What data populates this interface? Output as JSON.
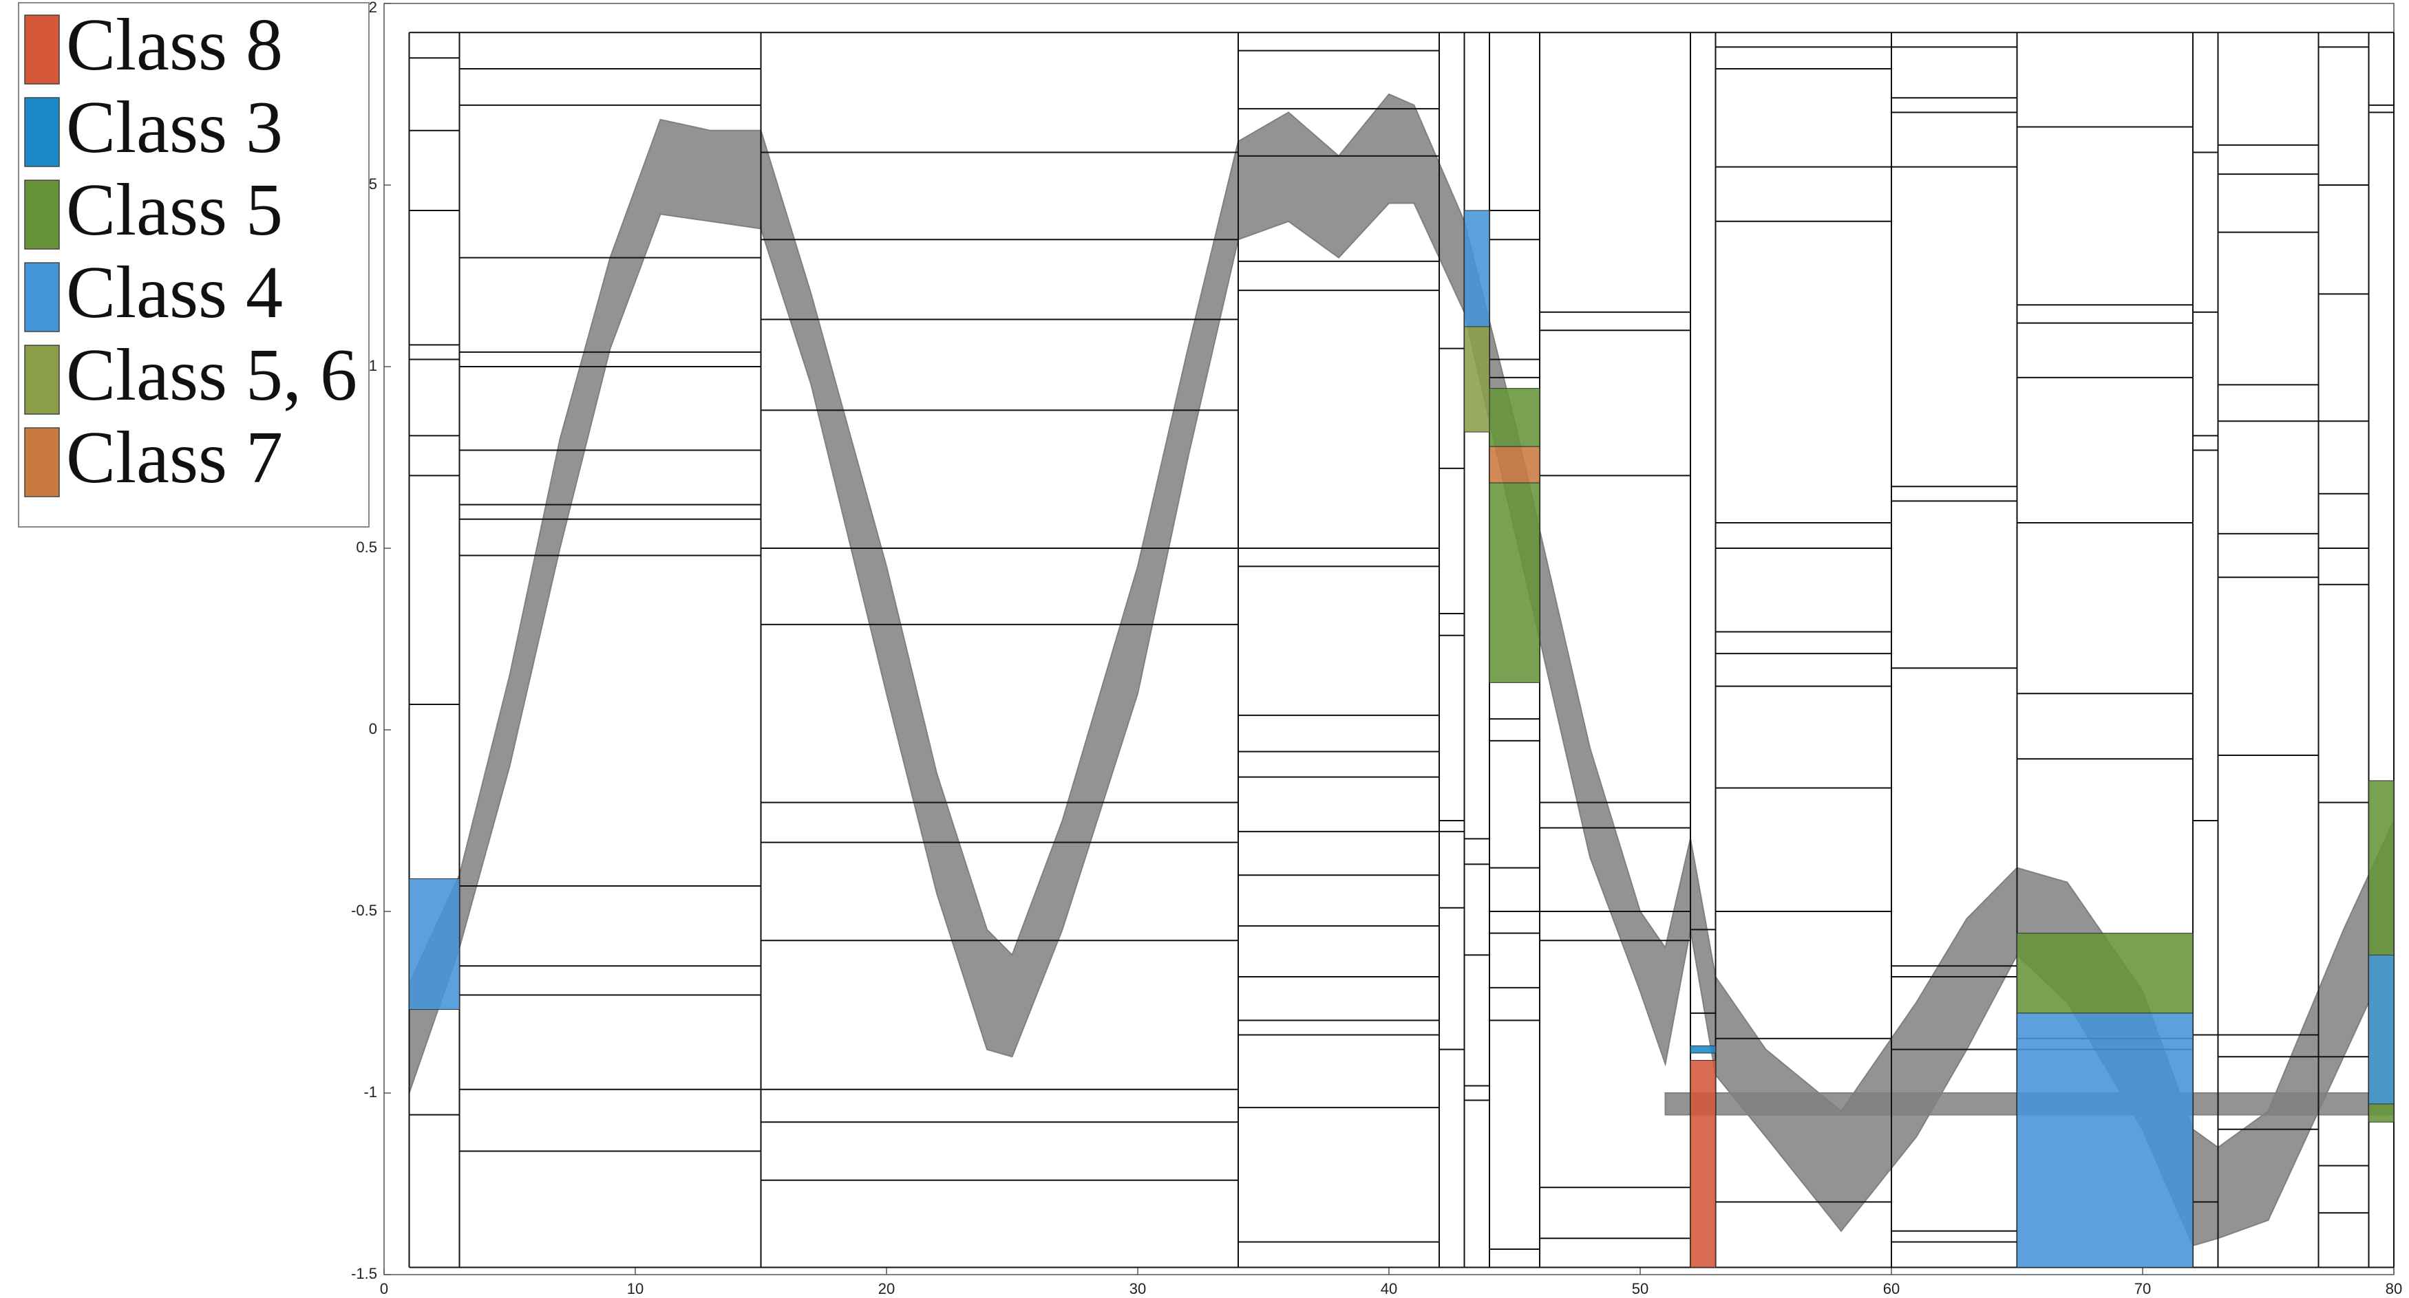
{
  "chart_data": {
    "type": "interval-overlay",
    "xlim": [
      0,
      80
    ],
    "ylim": [
      -1.5,
      2
    ],
    "xticks": [
      0,
      10,
      20,
      30,
      40,
      50,
      60,
      70,
      80
    ],
    "yticks": [
      -1.5,
      -1,
      -0.5,
      0,
      0.5,
      1,
      1.5,
      2
    ],
    "band_color": "#808080",
    "bands": [
      {
        "x": [
          1,
          3,
          5,
          7,
          9,
          11,
          13,
          15,
          17,
          20,
          22,
          24,
          25,
          27,
          30,
          32,
          34,
          36,
          38,
          40,
          41,
          43,
          45,
          48,
          50,
          51,
          52,
          53,
          55,
          58,
          61,
          63,
          65,
          67,
          70,
          72,
          73,
          75,
          78,
          80
        ],
        "lower": [
          -1.0,
          -0.6,
          -0.1,
          0.5,
          1.05,
          1.42,
          1.4,
          1.38,
          0.95,
          0.1,
          -0.45,
          -0.88,
          -0.9,
          -0.55,
          0.1,
          0.75,
          1.35,
          1.4,
          1.3,
          1.45,
          1.45,
          1.15,
          0.55,
          -0.35,
          -0.72,
          -0.92,
          -0.55,
          -0.95,
          -1.12,
          -1.38,
          -1.12,
          -0.88,
          -0.62,
          -0.75,
          -1.1,
          -1.42,
          -1.4,
          -1.35,
          -0.9,
          -0.6
        ],
        "upper": [
          -0.7,
          -0.4,
          0.15,
          0.8,
          1.3,
          1.68,
          1.65,
          1.65,
          1.2,
          0.45,
          -0.12,
          -0.55,
          -0.62,
          -0.25,
          0.45,
          1.05,
          1.62,
          1.7,
          1.58,
          1.75,
          1.72,
          1.4,
          0.85,
          -0.05,
          -0.5,
          -0.6,
          -0.3,
          -0.68,
          -0.88,
          -1.05,
          -0.75,
          -0.52,
          -0.38,
          -0.42,
          -0.72,
          -1.1,
          -1.15,
          -1.05,
          -0.55,
          -0.25
        ]
      },
      {
        "x": [
          51,
          80
        ],
        "lower": [
          -1.06,
          -1.06
        ],
        "upper": [
          -1.0,
          -1.0
        ]
      }
    ],
    "segments": [
      {
        "x0": 1,
        "x1": 3,
        "levels": [
          1.85,
          1.65,
          1.43,
          1.06,
          1.02,
          0.81,
          0.7,
          0.07,
          -1.06
        ]
      },
      {
        "x0": 3,
        "x1": 15,
        "levels": [
          1.82,
          1.72,
          1.3,
          1.04,
          1.0,
          0.77,
          0.62,
          0.58,
          0.48,
          -0.43,
          -0.65,
          -0.73,
          -0.99,
          -1.16
        ]
      },
      {
        "x0": 15,
        "x1": 34,
        "levels": [
          1.59,
          1.35,
          1.13,
          0.88,
          0.5,
          0.29,
          -0.2,
          -0.31,
          -0.58,
          -0.99,
          -1.08,
          -1.24
        ]
      },
      {
        "x0": 34,
        "x1": 42,
        "levels": [
          1.87,
          1.71,
          1.58,
          1.29,
          1.21,
          0.5,
          0.45,
          0.04,
          -0.06,
          -0.13,
          -0.28,
          -0.4,
          -0.54,
          -0.68,
          -0.8,
          -0.84,
          -1.04,
          -1.41
        ]
      },
      {
        "x0": 42,
        "x1": 43,
        "levels": [
          1.05,
          0.72,
          0.32,
          0.26,
          -0.25,
          -0.28,
          -0.49,
          -0.88
        ]
      },
      {
        "x0": 43,
        "x1": 44,
        "levels": [
          -0.3,
          -0.37,
          -0.62,
          -0.98,
          -1.02
        ]
      },
      {
        "x0": 44,
        "x1": 46,
        "levels": [
          1.43,
          1.35,
          1.02,
          0.97,
          0.03,
          -0.03,
          -0.38,
          -0.5,
          -0.56,
          -0.71,
          -0.8,
          -1.43
        ]
      },
      {
        "x0": 46,
        "x1": 52,
        "levels": [
          1.15,
          1.1,
          0.7,
          -0.2,
          -0.27,
          -0.5,
          -0.58,
          -1.26,
          -1.4
        ]
      },
      {
        "x0": 52,
        "x1": 53,
        "levels": [
          -0.55,
          -0.78
        ]
      },
      {
        "x0": 53,
        "x1": 60,
        "levels": [
          1.88,
          1.82,
          1.55,
          1.4,
          0.57,
          0.5,
          0.27,
          0.21,
          0.12,
          -0.16,
          -0.5,
          -0.85,
          -1.3
        ]
      },
      {
        "x0": 60,
        "x1": 65,
        "levels": [
          1.88,
          1.74,
          1.7,
          1.55,
          0.67,
          0.63,
          0.17,
          -0.65,
          -0.68,
          -0.88,
          -1.38,
          -1.41
        ]
      },
      {
        "x0": 65,
        "x1": 72,
        "levels": [
          1.66,
          1.17,
          1.12,
          0.97,
          0.57,
          0.1,
          -0.08,
          -0.85,
          -0.88
        ]
      },
      {
        "x0": 72,
        "x1": 73,
        "levels": [
          1.59,
          1.15,
          0.81,
          0.77,
          -0.25,
          -0.84,
          -1.3
        ]
      },
      {
        "x0": 73,
        "x1": 77,
        "levels": [
          1.61,
          1.53,
          1.37,
          0.95,
          0.85,
          0.54,
          0.42,
          -0.07,
          -0.84,
          -0.9,
          -1.1
        ]
      },
      {
        "x0": 77,
        "x1": 79,
        "levels": [
          1.88,
          1.5,
          1.2,
          0.85,
          0.65,
          0.5,
          0.4,
          -0.2,
          -0.9,
          -1.2,
          -1.33
        ]
      },
      {
        "x0": 79,
        "x1": 80,
        "levels": [
          1.72,
          1.7
        ]
      }
    ],
    "segment_top": 1.92,
    "segment_bottom": -1.48,
    "legend": [
      {
        "name": "Class 8",
        "color": "#d4573a"
      },
      {
        "name": "Class 3",
        "color": "#1a88c9"
      },
      {
        "name": "Class 5",
        "color": "#67943a"
      },
      {
        "name": "Class 4",
        "color": "#4495d8"
      },
      {
        "name": "Class 5, 6",
        "color": "#8a9e47"
      },
      {
        "name": "Class 7",
        "color": "#c87a3f"
      }
    ],
    "regions": [
      {
        "x0": 1,
        "x1": 3,
        "y0": -0.77,
        "y1": -0.41,
        "color": "#4495d8"
      },
      {
        "x0": 43,
        "x1": 44,
        "y0": 1.11,
        "y1": 1.43,
        "color": "#4495d8"
      },
      {
        "x0": 43,
        "x1": 44,
        "y0": 0.82,
        "y1": 1.11,
        "color": "#8a9e47"
      },
      {
        "x0": 44,
        "x1": 46,
        "y0": 0.78,
        "y1": 0.94,
        "color": "#67943a"
      },
      {
        "x0": 44,
        "x1": 46,
        "y0": 0.68,
        "y1": 0.78,
        "color": "#c87a3f"
      },
      {
        "x0": 44,
        "x1": 46,
        "y0": 0.13,
        "y1": 0.68,
        "color": "#67943a"
      },
      {
        "x0": 52,
        "x1": 53,
        "y0": -0.89,
        "y1": -0.87,
        "color": "#1a88c9"
      },
      {
        "x0": 52,
        "x1": 53,
        "y0": -1.48,
        "y1": -0.91,
        "color": "#d4573a"
      },
      {
        "x0": 65,
        "x1": 72,
        "y0": -0.78,
        "y1": -0.56,
        "color": "#67943a"
      },
      {
        "x0": 65,
        "x1": 72,
        "y0": -1.48,
        "y1": -0.78,
        "color": "#4495d8"
      },
      {
        "x0": 79,
        "x1": 80,
        "y0": -1.08,
        "y1": -0.14,
        "color": "#67943a"
      },
      {
        "x0": 79,
        "x1": 80,
        "y0": -1.03,
        "y1": -0.62,
        "color": "#4495d8"
      }
    ]
  }
}
